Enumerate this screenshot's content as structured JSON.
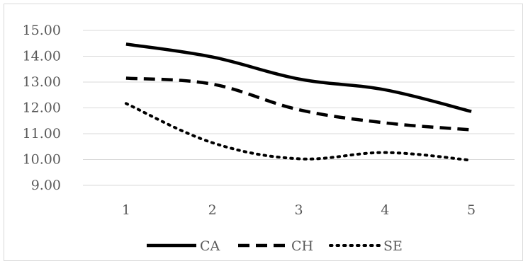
{
  "chart_data": {
    "type": "line",
    "x": [
      1,
      2,
      3,
      4,
      5
    ],
    "x_tick_labels": [
      "1",
      "2",
      "3",
      "4",
      "5"
    ],
    "y_tick_labels": [
      "9.00",
      "10.00",
      "11.00",
      "12.00",
      "13.00",
      "14.00",
      "15.00"
    ],
    "ylim": [
      9,
      15
    ],
    "grid": "horizontal",
    "legend_position": "bottom",
    "series": [
      {
        "name": "CA",
        "style": "solid",
        "color": "#000000",
        "values": [
          14.47,
          13.97,
          13.12,
          12.7,
          11.86
        ]
      },
      {
        "name": "CH",
        "style": "dashed",
        "color": "#000000",
        "values": [
          13.15,
          12.92,
          11.93,
          11.42,
          11.15
        ]
      },
      {
        "name": "SE",
        "style": "dotted",
        "color": "#000000",
        "values": [
          12.17,
          10.65,
          10.03,
          10.27,
          9.97
        ]
      }
    ],
    "gridline_color": "#d9d9d9",
    "title": "",
    "xlabel": "",
    "ylabel": ""
  }
}
